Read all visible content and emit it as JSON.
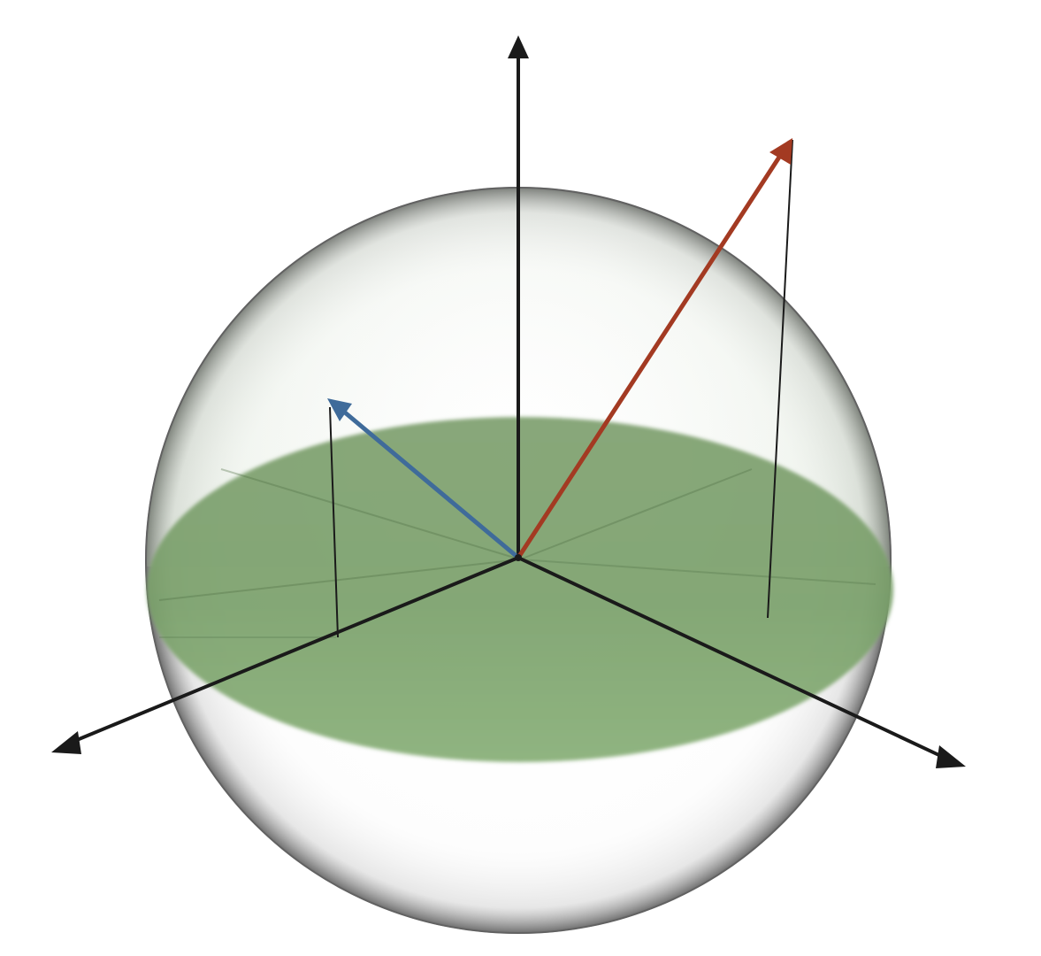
{
  "diagram": {
    "kind": "3d-vector-diagram",
    "background_color": "#ffffff",
    "sphere": {
      "style": "translucent glass sphere",
      "edge_color": "#4a4a4a"
    },
    "equatorial_plane": {
      "style": "translucent disk through sphere centre",
      "color": "#6f9f60"
    },
    "axes": [
      {
        "name": "vertical-axis",
        "color": "#1a1a1a"
      },
      {
        "name": "left-front-axis",
        "color": "#1a1a1a"
      },
      {
        "name": "right-front-axis",
        "color": "#1a1a1a"
      }
    ],
    "vectors": [
      {
        "name": "blue-vector",
        "color": "#3f6b9a",
        "has_drop_line_to_plane": true
      },
      {
        "name": "red-vector",
        "color": "#a33a22",
        "has_drop_line_to_plane": true
      }
    ],
    "text_labels": []
  }
}
